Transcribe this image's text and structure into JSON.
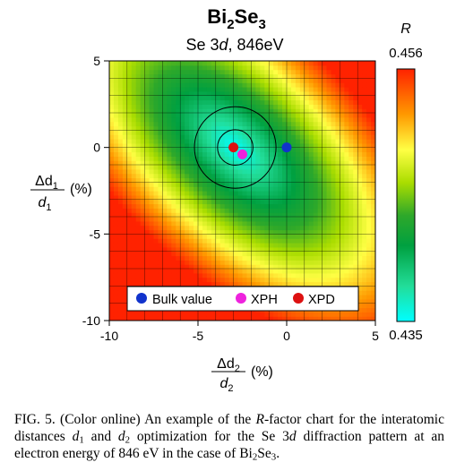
{
  "chart_data": {
    "type": "heatmap",
    "title_main": "Bi",
    "title_sub1": "2",
    "title_mid": "Se",
    "title_sub2": "3",
    "subtitle_pre": "Se 3",
    "subtitle_italic": "d",
    "subtitle_post": ", 846eV",
    "x_axis": {
      "range": [
        -10,
        5
      ],
      "ticks": [
        -10,
        -5,
        0,
        5
      ],
      "tick_labels": [
        "-10",
        "-5",
        "0",
        "5"
      ]
    },
    "y_axis": {
      "range": [
        -10,
        5
      ],
      "ticks": [
        5,
        0,
        -5,
        -10
      ],
      "tick_labels": [
        "5",
        "0",
        "-5",
        "-10"
      ]
    },
    "xlabel": {
      "numerator": "Δd",
      "numerator_sub": "2",
      "denominator": "d",
      "denominator_sub": "2",
      "unit": "(%)"
    },
    "ylabel": {
      "numerator": "Δd",
      "numerator_sub": "1",
      "denominator": "d",
      "denominator_sub": "1",
      "unit": "(%)"
    },
    "colorbar": {
      "label": "R",
      "max_label": "0.456",
      "min_label": "0.435",
      "min": 0.435,
      "max": 0.456,
      "colors": [
        "#00ffff",
        "#00cc66",
        "#008f2a",
        "#aadd00",
        "#ffff44",
        "#ff9900",
        "#ff2200"
      ]
    },
    "minimum": {
      "dx": -2.9,
      "dy": 0.0
    },
    "contours_radius_percent": [
      1.0,
      2.3
    ],
    "points": [
      {
        "name": "Bulk value",
        "x": 0.0,
        "y": 0.0,
        "color": "#1133cc"
      },
      {
        "name": "XPH",
        "x": -2.5,
        "y": -0.4,
        "color": "#ee22dd"
      },
      {
        "name": "XPD",
        "x": -3.0,
        "y": 0.0,
        "color": "#dd1111"
      }
    ],
    "legend": [
      "Bulk value",
      "XPH",
      "XPD"
    ],
    "grid": true
  },
  "caption": {
    "prefix": "FIG. 5. (Color online)  An example of the ",
    "r": "R",
    "part2": "-factor chart for the interatomic distances ",
    "d1": "d",
    "d1_sub": "1",
    "and": " and ",
    "d2": "d",
    "d2_sub": "2",
    "part3": " optimization for the Se 3",
    "d": "d",
    "part4": " diffraction pattern at an electron energy of 846 eV in the case of Bi",
    "bi_sub": "2",
    "se": "Se",
    "se_sub": "3",
    "end": "."
  }
}
